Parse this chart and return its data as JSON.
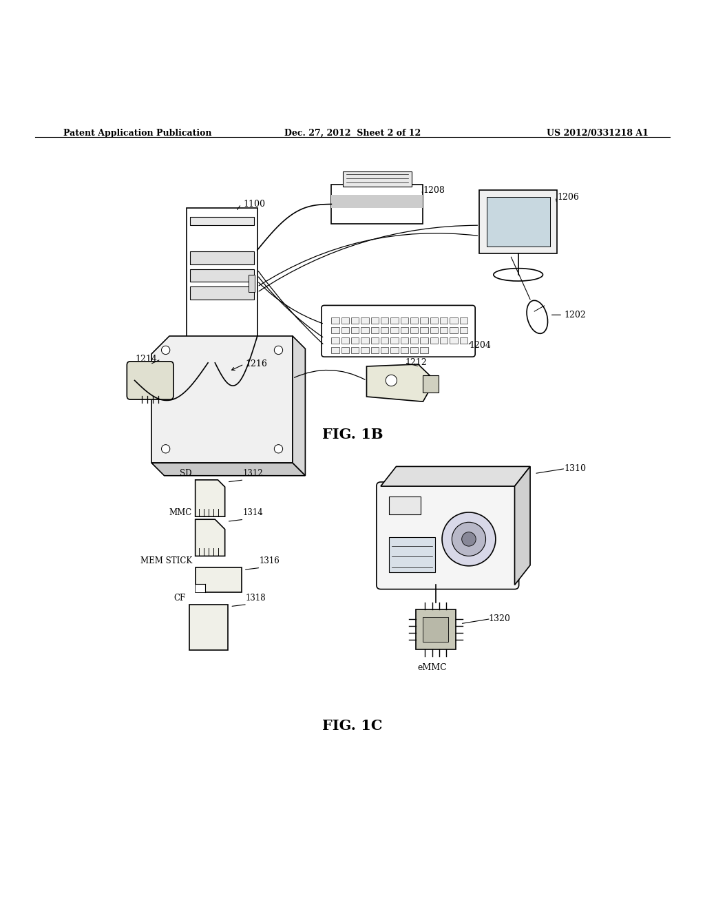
{
  "bg_color": "#ffffff",
  "line_color": "#000000",
  "header_left": "Patent Application Publication",
  "header_center": "Dec. 27, 2012  Sheet 2 of 12",
  "header_right": "US 2012/0331218 A1",
  "fig1b_label": "FIG. 1B",
  "fig1c_label": "FIG. 1C"
}
